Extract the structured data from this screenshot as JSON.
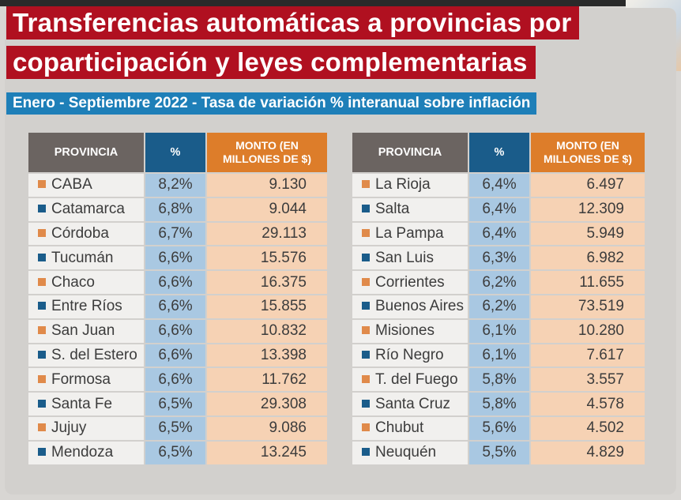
{
  "title_line1": "Transferencias automáticas a provincias por",
  "title_line2": "coparticipación y leyes complementarias",
  "subtitle": "Enero - Septiembre 2022 - Tasa de variación % interanual sobre inflación",
  "headers": {
    "province": "PROVINCIA",
    "pct": "%",
    "amount_l1": "MONTO (EN",
    "amount_l2": "MILLONES DE $)"
  },
  "colors": {
    "orange": "#e08a4a",
    "blue": "#1a5c8a"
  },
  "left": [
    {
      "province": "CABA",
      "pct": "8,2%",
      "amount": "9.130",
      "marker": "orange"
    },
    {
      "province": "Catamarca",
      "pct": "6,8%",
      "amount": "9.044",
      "marker": "blue"
    },
    {
      "province": "Córdoba",
      "pct": "6,7%",
      "amount": "29.113",
      "marker": "orange"
    },
    {
      "province": "Tucumán",
      "pct": "6,6%",
      "amount": "15.576",
      "marker": "blue"
    },
    {
      "province": "Chaco",
      "pct": "6,6%",
      "amount": "16.375",
      "marker": "orange"
    },
    {
      "province": "Entre Ríos",
      "pct": "6,6%",
      "amount": "15.855",
      "marker": "blue"
    },
    {
      "province": "San Juan",
      "pct": "6,6%",
      "amount": "10.832",
      "marker": "orange"
    },
    {
      "province": "S. del Estero",
      "pct": "6,6%",
      "amount": "13.398",
      "marker": "blue"
    },
    {
      "province": "Formosa",
      "pct": "6,6%",
      "amount": "11.762",
      "marker": "orange"
    },
    {
      "province": "Santa Fe",
      "pct": "6,5%",
      "amount": "29.308",
      "marker": "blue"
    },
    {
      "province": "Jujuy",
      "pct": "6,5%",
      "amount": "9.086",
      "marker": "orange"
    },
    {
      "province": "Mendoza",
      "pct": "6,5%",
      "amount": "13.245",
      "marker": "blue"
    }
  ],
  "right": [
    {
      "province": "La Rioja",
      "pct": "6,4%",
      "amount": "6.497",
      "marker": "orange"
    },
    {
      "province": "Salta",
      "pct": "6,4%",
      "amount": "12.309",
      "marker": "blue"
    },
    {
      "province": "La Pampa",
      "pct": "6,4%",
      "amount": "5.949",
      "marker": "orange"
    },
    {
      "province": "San Luis",
      "pct": "6,3%",
      "amount": "6.982",
      "marker": "blue"
    },
    {
      "province": "Corrientes",
      "pct": "6,2%",
      "amount": "11.655",
      "marker": "orange"
    },
    {
      "province": "Buenos Aires",
      "pct": "6,2%",
      "amount": "73.519",
      "marker": "blue"
    },
    {
      "province": "Misiones",
      "pct": "6,1%",
      "amount": "10.280",
      "marker": "orange"
    },
    {
      "province": "Río Negro",
      "pct": "6,1%",
      "amount": "7.617",
      "marker": "blue"
    },
    {
      "province": "T. del Fuego",
      "pct": "5,8%",
      "amount": "3.557",
      "marker": "orange"
    },
    {
      "province": "Santa Cruz",
      "pct": "5,8%",
      "amount": "4.578",
      "marker": "blue"
    },
    {
      "province": "Chubut",
      "pct": "5,6%",
      "amount": "4.502",
      "marker": "orange"
    },
    {
      "province": "Neuquén",
      "pct": "5,5%",
      "amount": "4.829",
      "marker": "blue"
    }
  ]
}
